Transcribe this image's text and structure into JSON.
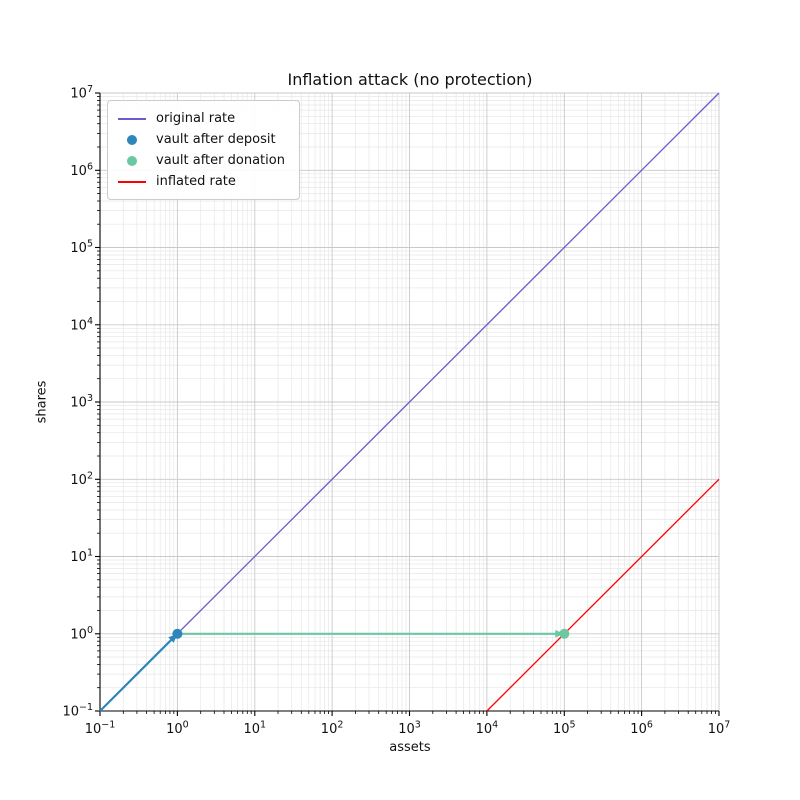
{
  "chart_data": {
    "type": "line",
    "title": "Inflation attack (no protection)",
    "xlabel": "assets",
    "ylabel": "shares",
    "xscale": "log",
    "yscale": "log",
    "xlim": [
      0.1,
      10000000
    ],
    "ylim": [
      0.1,
      10000000
    ],
    "x_tick_exponents": [
      -1,
      0,
      1,
      2,
      3,
      4,
      5,
      6,
      7
    ],
    "y_tick_exponents": [
      -1,
      0,
      1,
      2,
      3,
      4,
      5,
      6,
      7
    ],
    "grid": "both",
    "legend_position": "upper left",
    "series": [
      {
        "name": "original rate",
        "kind": "line",
        "color": "#6A5ACD",
        "line_width": 1.3,
        "points": [
          [
            0.1,
            0.1
          ],
          [
            10000000,
            10000000
          ]
        ]
      },
      {
        "name": "vault after deposit",
        "kind": "scatter",
        "color": "#2E86BB",
        "marker_radius": 5,
        "points": [
          [
            1,
            1
          ]
        ]
      },
      {
        "name": "vault after donation",
        "kind": "scatter",
        "color": "#6CC7A3",
        "marker_radius": 5,
        "points": [
          [
            100000,
            1
          ]
        ]
      },
      {
        "name": "inflated rate",
        "kind": "line",
        "color": "#FF0000",
        "line_width": 1.3,
        "points": [
          [
            10000,
            0.1
          ],
          [
            10000000,
            100
          ]
        ]
      }
    ],
    "annotations": [
      {
        "kind": "arrow",
        "name": "deposit-move",
        "color": "#2E86BB",
        "from": [
          0.1,
          0.1
        ],
        "to": [
          1,
          1
        ],
        "line_width": 2.2
      },
      {
        "kind": "arrow",
        "name": "donation-move",
        "color": "#6CC7A3",
        "from": [
          1,
          1
        ],
        "to": [
          100000,
          1
        ],
        "line_width": 2.2
      }
    ]
  },
  "style_colors": {
    "grid_major": "#c9c9c9",
    "grid_minor": "#e7e7e7",
    "spine": "#000000",
    "tick_label": "#111111",
    "legend_border": "#cccccc"
  }
}
